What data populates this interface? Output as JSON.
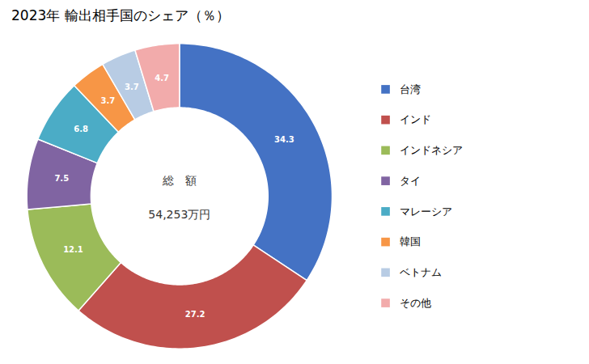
{
  "chart_data": {
    "type": "pie",
    "title": "2023年 輸出相手国のシェア（％）",
    "annotations": [
      "総　額",
      "54,253万円"
    ],
    "categories": [
      "台湾",
      "インド",
      "インドネシア",
      "タイ",
      "マレーシア",
      "韓国",
      "ベトナム",
      "その他"
    ],
    "values": [
      34.3,
      27.2,
      12.1,
      7.5,
      6.8,
      3.7,
      3.7,
      4.7
    ],
    "colors": [
      "#4472C4",
      "#C0504D",
      "#9BBB59",
      "#8064A2",
      "#4BACC6",
      "#F79646",
      "#B8CCE4",
      "#F2ABAB"
    ],
    "data_labels": true,
    "legend": "right"
  }
}
